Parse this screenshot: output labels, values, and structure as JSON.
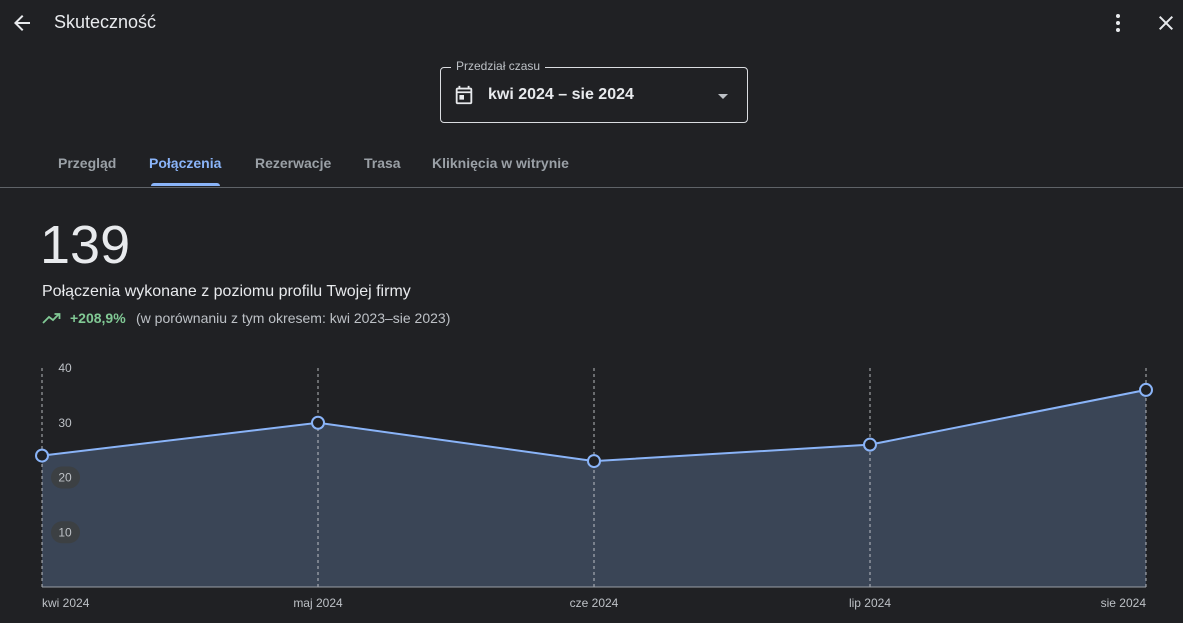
{
  "header": {
    "title": "Skuteczność"
  },
  "date_range": {
    "legend": "Przedział czasu",
    "value": "kwi 2024 – sie 2024"
  },
  "tabs": [
    {
      "label": "Przegląd",
      "active": false
    },
    {
      "label": "Połączenia",
      "active": true
    },
    {
      "label": "Rezerwacje",
      "active": false
    },
    {
      "label": "Trasa",
      "active": false
    },
    {
      "label": "Kliknięcia w witrynie",
      "active": false
    }
  ],
  "metric": {
    "value": "139",
    "caption": "Połączenia wykonane z poziomu profilu Twojej firmy",
    "trend": "+208,9%",
    "comparison": "(w porównaniu z tym okresem: kwi 2023–sie 2023)"
  },
  "colors": {
    "background": "#202124",
    "accent": "#8ab4f8",
    "positive": "#81c995",
    "area_fill": "#3a4556"
  },
  "icons": {
    "back": "arrow-back-icon",
    "more": "more-vert-icon",
    "close": "close-icon",
    "calendar": "calendar-icon",
    "dropdown": "arrow-drop-down-icon",
    "trend": "trending-up-icon"
  },
  "chart_data": {
    "type": "area",
    "categories": [
      "kwi 2024",
      "maj 2024",
      "cze 2024",
      "lip 2024",
      "sie 2024"
    ],
    "values": [
      24,
      30,
      23,
      26,
      36
    ],
    "yticks": [
      10,
      20,
      30,
      40
    ],
    "ylim": [
      0,
      40
    ],
    "grid": "vertical-dashed",
    "legend": "none"
  }
}
